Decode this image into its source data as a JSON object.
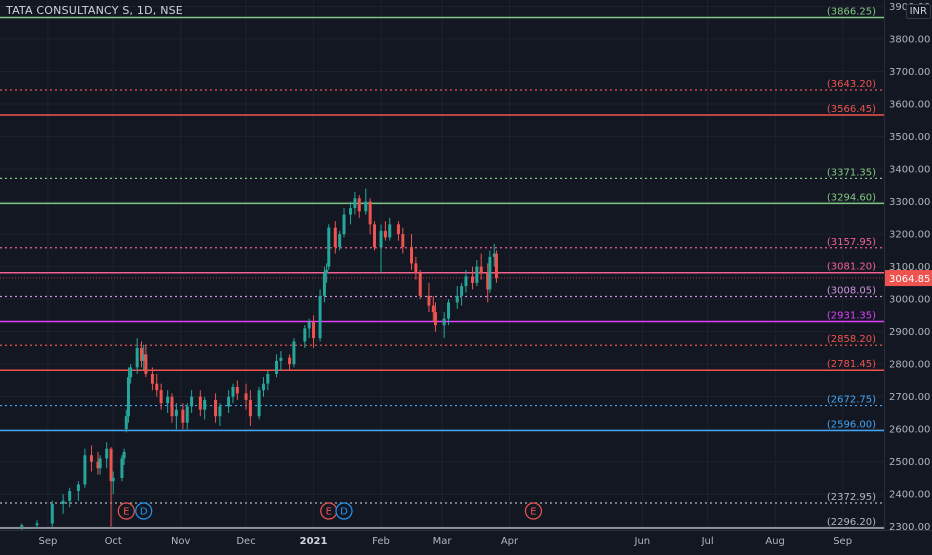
{
  "header": {
    "symbol_title": "TATA CONSULTANCY S, 1D, NSE",
    "currency": "INR"
  },
  "colors": {
    "background": "#131722",
    "grid": "#1e222d",
    "up": "#26a69a",
    "down": "#ef5350",
    "current_price_bg": "#ef5350",
    "earnings_marker": "#ef5350",
    "dividend_marker": "#2196f3"
  },
  "price_axis": {
    "ticks": [
      "3900.00",
      "3800.00",
      "3700.00",
      "3600.00",
      "3500.00",
      "3400.00",
      "3300.00",
      "3200.00",
      "3100.00",
      "3000.00",
      "2900.00",
      "2800.00",
      "2700.00",
      "2600.00",
      "2500.00",
      "2400.00",
      "2300.00"
    ],
    "current_price": "3064.85"
  },
  "time_axis": {
    "labels": [
      "Sep",
      "Oct",
      "Nov",
      "Dec",
      "2021",
      "Feb",
      "Mar",
      "Apr",
      "Jun",
      "Jul",
      "Aug",
      "Sep"
    ]
  },
  "levels": [
    {
      "label": "(3866.25)",
      "price": 3866.25,
      "color": "#81c784",
      "style": "solid"
    },
    {
      "label": "(3643.20)",
      "price": 3643.2,
      "color": "#ef5350",
      "style": "dotted"
    },
    {
      "label": "(3566.45)",
      "price": 3566.45,
      "color": "#ef5350",
      "style": "solid"
    },
    {
      "label": "(3371.35)",
      "price": 3371.35,
      "color": "#81c784",
      "style": "dotted"
    },
    {
      "label": "(3294.60)",
      "price": 3294.6,
      "color": "#81c784",
      "style": "solid"
    },
    {
      "label": "(3157.95)",
      "price": 3157.95,
      "color": "#f06292",
      "style": "dotted"
    },
    {
      "label": "(3081.20)",
      "price": 3081.2,
      "color": "#f06292",
      "style": "solid"
    },
    {
      "label": "(3008.05)",
      "price": 3008.05,
      "color": "#ce93d8",
      "style": "dotted"
    },
    {
      "label": "(2931.35)",
      "price": 2931.35,
      "color": "#e040fb",
      "style": "solid"
    },
    {
      "label": "(2858.20)",
      "price": 2858.2,
      "color": "#ef5350",
      "style": "dotted"
    },
    {
      "label": "(2781.45)",
      "price": 2781.45,
      "color": "#ef5350",
      "style": "solid"
    },
    {
      "label": "(2672.75)",
      "price": 2672.75,
      "color": "#42a5f5",
      "style": "dotted"
    },
    {
      "label": "(2596.00)",
      "price": 2596.0,
      "color": "#42a5f5",
      "style": "solid"
    },
    {
      "label": "(2372.95)",
      "price": 2372.95,
      "color": "#b2b5be",
      "style": "dotted"
    },
    {
      "label": "(2296.20)",
      "price": 2296.2,
      "color": "#b2b5be",
      "style": "solid"
    }
  ],
  "events": [
    {
      "letter": "E",
      "kind": "earnings",
      "date": "2020-10-07"
    },
    {
      "letter": "D",
      "kind": "dividend",
      "date": "2020-10-15"
    },
    {
      "letter": "E",
      "kind": "earnings",
      "date": "2021-01-08"
    },
    {
      "letter": "D",
      "kind": "dividend",
      "date": "2021-01-15"
    },
    {
      "letter": "E",
      "kind": "earnings",
      "date": "2021-04-12"
    }
  ],
  "chart_data": {
    "type": "candlestick",
    "ylim": [
      2290,
      3920
    ],
    "xlim": [
      "2020-08-10",
      "2021-09-20"
    ],
    "candles": [
      {
        "date": "2020-08-20",
        "open": 2300,
        "high": 2310,
        "low": 2290,
        "close": 2305
      },
      {
        "date": "2020-08-27",
        "open": 2305,
        "high": 2320,
        "low": 2295,
        "close": 2310
      },
      {
        "date": "2020-09-03",
        "open": 2310,
        "high": 2380,
        "low": 2300,
        "close": 2370
      },
      {
        "date": "2020-09-08",
        "open": 2370,
        "high": 2400,
        "low": 2340,
        "close": 2380
      },
      {
        "date": "2020-09-11",
        "open": 2380,
        "high": 2420,
        "low": 2360,
        "close": 2410
      },
      {
        "date": "2020-09-15",
        "open": 2410,
        "high": 2440,
        "low": 2380,
        "close": 2430
      },
      {
        "date": "2020-09-18",
        "open": 2430,
        "high": 2540,
        "low": 2420,
        "close": 2520
      },
      {
        "date": "2020-09-21",
        "open": 2520,
        "high": 2550,
        "low": 2470,
        "close": 2500
      },
      {
        "date": "2020-09-24",
        "open": 2500,
        "high": 2530,
        "low": 2460,
        "close": 2480
      },
      {
        "date": "2020-09-25",
        "open": 2480,
        "high": 2520,
        "low": 2460,
        "close": 2510
      },
      {
        "date": "2020-09-28",
        "open": 2510,
        "high": 2560,
        "low": 2480,
        "close": 2540
      },
      {
        "date": "2020-09-30",
        "open": 2540,
        "high": 2545,
        "low": 2300,
        "close": 2440
      },
      {
        "date": "2020-10-01",
        "open": 2440,
        "high": 2470,
        "low": 2400,
        "close": 2450
      },
      {
        "date": "2020-10-05",
        "open": 2450,
        "high": 2520,
        "low": 2440,
        "close": 2510
      },
      {
        "date": "2020-10-06",
        "open": 2510,
        "high": 2540,
        "low": 2490,
        "close": 2530
      },
      {
        "date": "2020-10-07",
        "open": 2600,
        "high": 2660,
        "low": 2590,
        "close": 2640
      },
      {
        "date": "2020-10-08",
        "open": 2640,
        "high": 2790,
        "low": 2620,
        "close": 2760
      },
      {
        "date": "2020-10-09",
        "open": 2760,
        "high": 2800,
        "low": 2740,
        "close": 2790
      },
      {
        "date": "2020-10-12",
        "open": 2790,
        "high": 2880,
        "low": 2770,
        "close": 2850
      },
      {
        "date": "2020-10-14",
        "open": 2850,
        "high": 2870,
        "low": 2790,
        "close": 2810
      },
      {
        "date": "2020-10-15",
        "open": 2810,
        "high": 2860,
        "low": 2780,
        "close": 2830
      },
      {
        "date": "2020-10-16",
        "open": 2830,
        "high": 2860,
        "low": 2760,
        "close": 2770
      },
      {
        "date": "2020-10-19",
        "open": 2770,
        "high": 2790,
        "low": 2720,
        "close": 2740
      },
      {
        "date": "2020-10-21",
        "open": 2740,
        "high": 2770,
        "low": 2700,
        "close": 2720
      },
      {
        "date": "2020-10-23",
        "open": 2720,
        "high": 2740,
        "low": 2660,
        "close": 2680
      },
      {
        "date": "2020-10-26",
        "open": 2680,
        "high": 2720,
        "low": 2650,
        "close": 2700
      },
      {
        "date": "2020-10-28",
        "open": 2700,
        "high": 2710,
        "low": 2620,
        "close": 2640
      },
      {
        "date": "2020-10-30",
        "open": 2640,
        "high": 2680,
        "low": 2600,
        "close": 2660
      },
      {
        "date": "2020-11-02",
        "open": 2660,
        "high": 2680,
        "low": 2600,
        "close": 2620
      },
      {
        "date": "2020-11-04",
        "open": 2620,
        "high": 2680,
        "low": 2600,
        "close": 2670
      },
      {
        "date": "2020-11-06",
        "open": 2670,
        "high": 2720,
        "low": 2650,
        "close": 2700
      },
      {
        "date": "2020-11-10",
        "open": 2700,
        "high": 2720,
        "low": 2640,
        "close": 2660
      },
      {
        "date": "2020-11-12",
        "open": 2660,
        "high": 2700,
        "low": 2630,
        "close": 2690
      },
      {
        "date": "2020-11-17",
        "open": 2690,
        "high": 2710,
        "low": 2620,
        "close": 2640
      },
      {
        "date": "2020-11-19",
        "open": 2640,
        "high": 2680,
        "low": 2610,
        "close": 2670
      },
      {
        "date": "2020-11-23",
        "open": 2670,
        "high": 2720,
        "low": 2650,
        "close": 2700
      },
      {
        "date": "2020-11-25",
        "open": 2700,
        "high": 2740,
        "low": 2680,
        "close": 2730
      },
      {
        "date": "2020-11-27",
        "open": 2730,
        "high": 2750,
        "low": 2690,
        "close": 2710
      },
      {
        "date": "2020-12-01",
        "open": 2710,
        "high": 2740,
        "low": 2660,
        "close": 2690
      },
      {
        "date": "2020-12-03",
        "open": 2690,
        "high": 2720,
        "low": 2610,
        "close": 2640
      },
      {
        "date": "2020-12-07",
        "open": 2640,
        "high": 2730,
        "low": 2630,
        "close": 2720
      },
      {
        "date": "2020-12-09",
        "open": 2720,
        "high": 2760,
        "low": 2700,
        "close": 2740
      },
      {
        "date": "2020-12-11",
        "open": 2740,
        "high": 2780,
        "low": 2720,
        "close": 2770
      },
      {
        "date": "2020-12-15",
        "open": 2770,
        "high": 2830,
        "low": 2760,
        "close": 2810
      },
      {
        "date": "2020-12-17",
        "open": 2810,
        "high": 2840,
        "low": 2780,
        "close": 2820
      },
      {
        "date": "2020-12-21",
        "open": 2820,
        "high": 2830,
        "low": 2780,
        "close": 2800
      },
      {
        "date": "2020-12-23",
        "open": 2800,
        "high": 2880,
        "low": 2790,
        "close": 2870
      },
      {
        "date": "2020-12-28",
        "open": 2870,
        "high": 2920,
        "low": 2850,
        "close": 2910
      },
      {
        "date": "2020-12-30",
        "open": 2910,
        "high": 2940,
        "low": 2880,
        "close": 2930
      },
      {
        "date": "2021-01-01",
        "open": 2930,
        "high": 2950,
        "low": 2850,
        "close": 2880
      },
      {
        "date": "2021-01-04",
        "open": 2880,
        "high": 3030,
        "low": 2870,
        "close": 3010
      },
      {
        "date": "2021-01-06",
        "open": 3010,
        "high": 3100,
        "low": 2990,
        "close": 3080
      },
      {
        "date": "2021-01-07",
        "open": 3080,
        "high": 3110,
        "low": 3050,
        "close": 3090
      },
      {
        "date": "2021-01-08",
        "open": 3100,
        "high": 3230,
        "low": 3090,
        "close": 3220
      },
      {
        "date": "2021-01-11",
        "open": 3220,
        "high": 3240,
        "low": 3140,
        "close": 3160
      },
      {
        "date": "2021-01-13",
        "open": 3160,
        "high": 3210,
        "low": 3150,
        "close": 3200
      },
      {
        "date": "2021-01-15",
        "open": 3200,
        "high": 3280,
        "low": 3190,
        "close": 3260
      },
      {
        "date": "2021-01-18",
        "open": 3260,
        "high": 3300,
        "low": 3230,
        "close": 3280
      },
      {
        "date": "2021-01-20",
        "open": 3280,
        "high": 3330,
        "low": 3260,
        "close": 3310
      },
      {
        "date": "2021-01-22",
        "open": 3310,
        "high": 3320,
        "low": 3250,
        "close": 3270
      },
      {
        "date": "2021-01-25",
        "open": 3270,
        "high": 3340,
        "low": 3260,
        "close": 3300
      },
      {
        "date": "2021-01-27",
        "open": 3300,
        "high": 3310,
        "low": 3200,
        "close": 3230
      },
      {
        "date": "2021-01-29",
        "open": 3230,
        "high": 3240,
        "low": 3150,
        "close": 3160
      },
      {
        "date": "2021-02-01",
        "open": 3160,
        "high": 3230,
        "low": 3080,
        "close": 3210
      },
      {
        "date": "2021-02-03",
        "open": 3210,
        "high": 3240,
        "low": 3180,
        "close": 3190
      },
      {
        "date": "2021-02-05",
        "open": 3190,
        "high": 3250,
        "low": 3180,
        "close": 3230
      },
      {
        "date": "2021-02-09",
        "open": 3230,
        "high": 3240,
        "low": 3180,
        "close": 3200
      },
      {
        "date": "2021-02-11",
        "open": 3200,
        "high": 3220,
        "low": 3140,
        "close": 3160
      },
      {
        "date": "2021-02-15",
        "open": 3160,
        "high": 3200,
        "low": 3090,
        "close": 3110
      },
      {
        "date": "2021-02-17",
        "open": 3110,
        "high": 3130,
        "low": 3060,
        "close": 3080
      },
      {
        "date": "2021-02-19",
        "open": 3080,
        "high": 3090,
        "low": 3000,
        "close": 3010
      },
      {
        "date": "2021-02-23",
        "open": 3010,
        "high": 3050,
        "low": 2960,
        "close": 2980
      },
      {
        "date": "2021-02-25",
        "open": 2980,
        "high": 3010,
        "low": 2930,
        "close": 2960
      },
      {
        "date": "2021-02-26",
        "open": 2960,
        "high": 2990,
        "low": 2900,
        "close": 2920
      },
      {
        "date": "2021-03-02",
        "open": 2920,
        "high": 2960,
        "low": 2880,
        "close": 2940
      },
      {
        "date": "2021-03-04",
        "open": 2940,
        "high": 3000,
        "low": 2920,
        "close": 2990
      },
      {
        "date": "2021-03-08",
        "open": 2990,
        "high": 3040,
        "low": 2970,
        "close": 3010
      },
      {
        "date": "2021-03-10",
        "open": 3010,
        "high": 3050,
        "low": 2980,
        "close": 3040
      },
      {
        "date": "2021-03-12",
        "open": 3040,
        "high": 3090,
        "low": 3020,
        "close": 3070
      },
      {
        "date": "2021-03-15",
        "open": 3070,
        "high": 3100,
        "low": 3030,
        "close": 3050
      },
      {
        "date": "2021-03-17",
        "open": 3050,
        "high": 3120,
        "low": 3040,
        "close": 3100
      },
      {
        "date": "2021-03-19",
        "open": 3100,
        "high": 3140,
        "low": 3060,
        "close": 3080
      },
      {
        "date": "2021-03-22",
        "open": 3080,
        "high": 3110,
        "low": 2990,
        "close": 3030
      },
      {
        "date": "2021-03-23",
        "open": 3030,
        "high": 3150,
        "low": 3020,
        "close": 3130
      },
      {
        "date": "2021-03-25",
        "open": 3130,
        "high": 3170,
        "low": 3100,
        "close": 3140
      },
      {
        "date": "2021-03-26",
        "open": 3140,
        "high": 3150,
        "low": 3050,
        "close": 3065
      }
    ]
  }
}
